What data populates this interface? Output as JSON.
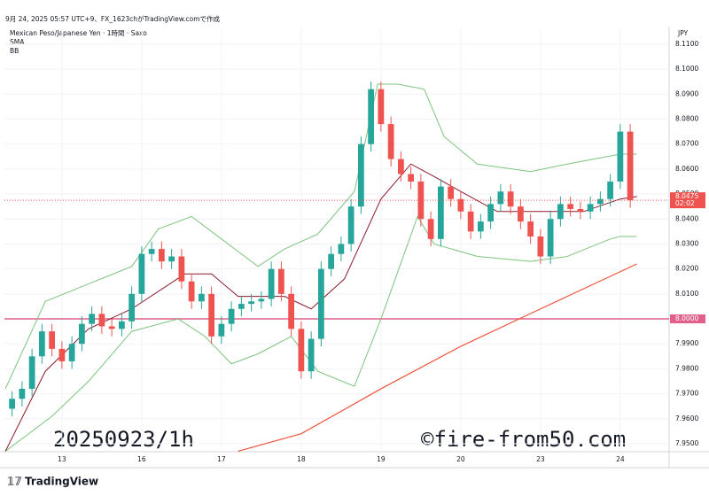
{
  "chart_data": {
    "type": "candlestick",
    "header": "9月 24, 2025 05:57 UTC+9、FX_1623chがTradingView.comで作成",
    "title": "Mexican Peso/Japanese Yen · 1時間 · Saxo",
    "currency": "JPY",
    "brand": "TradingView",
    "annotations": [
      "20250923/1h",
      "©fire-from50.com"
    ],
    "up_color": "#26a69a",
    "down_color": "#ef5350",
    "xlim": [
      -17.3,
      182.7
    ],
    "xticks": [
      {
        "value": 0,
        "label": "13"
      },
      {
        "value": 24,
        "label": "16"
      },
      {
        "value": 48,
        "label": "17"
      },
      {
        "value": 72,
        "label": "18"
      },
      {
        "value": 96,
        "label": "19"
      },
      {
        "value": 120,
        "label": "20"
      },
      {
        "value": 144,
        "label": "23"
      },
      {
        "value": 168,
        "label": "24"
      }
    ],
    "ylim": [
      7.9468,
      8.116
    ],
    "yticks": [
      {
        "value": 7.95,
        "label": "7.9500"
      },
      {
        "value": 7.96,
        "label": "7.9600"
      },
      {
        "value": 7.97,
        "label": "7.9700"
      },
      {
        "value": 7.98,
        "label": "7.9800"
      },
      {
        "value": 7.99,
        "label": "7.9900"
      },
      {
        "value": 8.0,
        "label": "8.0000"
      },
      {
        "value": 8.01,
        "label": "8.0100"
      },
      {
        "value": 8.02,
        "label": "8.0200"
      },
      {
        "value": 8.03,
        "label": "8.0300"
      },
      {
        "value": 8.04,
        "label": "8.0400"
      },
      {
        "value": 8.05,
        "label": "8.0500"
      },
      {
        "value": 8.06,
        "label": "8.0600"
      },
      {
        "value": 8.07,
        "label": "8.0700"
      },
      {
        "value": 8.08,
        "label": "8.0800"
      },
      {
        "value": 8.09,
        "label": "8.0900"
      },
      {
        "value": 8.1,
        "label": "8.1000"
      },
      {
        "value": 8.11,
        "label": "8.1100"
      }
    ],
    "grid": true,
    "x": [
      -15,
      -12,
      -9,
      -6,
      -3,
      0,
      3,
      6,
      9,
      12,
      15,
      18,
      21,
      24,
      27,
      30,
      33,
      36,
      39,
      42,
      45,
      48,
      51,
      54,
      57,
      60,
      63,
      66,
      69,
      72,
      75,
      78,
      81,
      84,
      87,
      90,
      93,
      96,
      99,
      102,
      105,
      108,
      111,
      114,
      117,
      120,
      123,
      126,
      129,
      132,
      135,
      138,
      141,
      144,
      147,
      150,
      153,
      156,
      159,
      162,
      165,
      168,
      171
    ],
    "open": [
      7.964,
      7.968,
      7.972,
      7.985,
      7.995,
      7.988,
      7.983,
      7.99,
      7.998,
      8.002,
      7.997,
      7.996,
      7.999,
      8.01,
      8.026,
      8.028,
      8.023,
      8.025,
      8.015,
      8.007,
      8.01,
      7.993,
      7.998,
      8.004,
      8.006,
      8.007,
      8.008,
      8.02,
      8.01,
      7.996,
      7.979,
      7.992,
      8.02,
      8.026,
      8.03,
      8.045,
      8.07,
      8.092,
      8.078,
      8.064,
      8.058,
      8.055,
      8.04,
      8.032,
      8.053,
      8.048,
      8.043,
      8.035,
      8.039,
      8.046,
      8.051,
      8.045,
      8.039,
      8.033,
      8.025,
      8.04,
      8.046,
      8.044,
      8.043,
      8.046,
      8.048,
      8.055,
      8.075
    ],
    "high": [
      7.971,
      7.975,
      7.988,
      7.998,
      7.998,
      7.991,
      7.993,
      8.001,
      8.005,
      8.005,
      8.0,
      8.002,
      8.013,
      8.029,
      8.031,
      8.031,
      8.028,
      8.028,
      8.018,
      8.013,
      8.013,
      8.001,
      8.007,
      8.009,
      8.01,
      8.011,
      8.023,
      8.023,
      8.013,
      7.999,
      7.995,
      8.023,
      8.029,
      8.033,
      8.048,
      8.073,
      8.095,
      8.095,
      8.081,
      8.067,
      8.061,
      8.058,
      8.043,
      8.056,
      8.056,
      8.051,
      8.046,
      8.042,
      8.049,
      8.054,
      8.054,
      8.048,
      8.042,
      8.036,
      8.043,
      8.049,
      8.049,
      8.047,
      8.049,
      8.051,
      8.058,
      8.078,
      8.078
    ],
    "low": [
      7.961,
      7.965,
      7.969,
      7.982,
      7.985,
      7.98,
      7.98,
      7.987,
      7.995,
      7.994,
      7.993,
      7.993,
      7.996,
      8.007,
      8.023,
      8.02,
      8.02,
      8.012,
      8.004,
      8.004,
      7.99,
      7.99,
      7.995,
      8.001,
      8.003,
      8.004,
      8.005,
      8.007,
      7.993,
      7.976,
      7.976,
      7.989,
      8.017,
      8.023,
      8.027,
      8.042,
      8.067,
      8.075,
      8.061,
      8.055,
      8.052,
      8.037,
      8.029,
      8.029,
      8.045,
      8.04,
      8.032,
      8.032,
      8.036,
      8.043,
      8.042,
      8.036,
      8.03,
      8.022,
      8.022,
      8.037,
      8.041,
      8.04,
      8.04,
      8.043,
      8.045,
      8.052,
      8.0445
    ],
    "close": [
      7.968,
      7.972,
      7.985,
      7.995,
      7.988,
      7.983,
      7.99,
      7.998,
      8.002,
      7.997,
      7.996,
      7.999,
      8.01,
      8.026,
      8.028,
      8.023,
      8.025,
      8.015,
      8.007,
      8.01,
      7.993,
      7.998,
      8.004,
      8.006,
      8.007,
      8.008,
      8.02,
      8.01,
      7.996,
      7.979,
      7.992,
      8.02,
      8.026,
      8.03,
      8.045,
      8.07,
      8.092,
      8.078,
      8.064,
      8.058,
      8.055,
      8.04,
      8.032,
      8.053,
      8.048,
      8.043,
      8.035,
      8.039,
      8.046,
      8.051,
      8.045,
      8.039,
      8.033,
      8.025,
      8.04,
      8.046,
      8.044,
      8.043,
      8.046,
      8.048,
      8.055,
      8.075,
      8.0475
    ],
    "last_price": 8.0475,
    "countdown": "02:02",
    "hline": {
      "value": 8.0,
      "label": "8.0000",
      "color": "#e0608a"
    },
    "sma": {
      "name": "SMA",
      "color": "#f0533c",
      "x": [
        53,
        72,
        96,
        120,
        144,
        173
      ],
      "values": [
        7.947,
        7.954,
        7.972,
        7.989,
        8.004,
        8.022
      ]
    },
    "bb": {
      "name": "BB",
      "band_color": "#7cc47c",
      "middle_color": "#8b1a2b",
      "middle": {
        "x": [
          -17,
          -5,
          8,
          21,
          37,
          45,
          53,
          67,
          75,
          85,
          96,
          105,
          112,
          120,
          131,
          139,
          147,
          157,
          168,
          173
        ],
        "values": [
          7.947,
          7.979,
          7.996,
          8.004,
          8.018,
          8.018,
          8.009,
          8.009,
          8.004,
          8.016,
          8.048,
          8.062,
          8.057,
          8.051,
          8.043,
          8.043,
          8.043,
          8.043,
          8.048,
          8.049
        ]
      },
      "upper": {
        "x": [
          -17,
          -5,
          8,
          21,
          29,
          39,
          48,
          59,
          67,
          77,
          88,
          95,
          101,
          109,
          115,
          125,
          141,
          152,
          168,
          173
        ],
        "values": [
          7.972,
          8.007,
          8.014,
          8.021,
          8.036,
          8.041,
          8.032,
          8.021,
          8.028,
          8.034,
          8.051,
          8.094,
          8.094,
          8.092,
          8.073,
          8.062,
          8.059,
          8.062,
          8.066,
          8.066
        ]
      },
      "lower": {
        "x": [
          -17,
          -3,
          8,
          21,
          35,
          43,
          51,
          59,
          69,
          77,
          88,
          96,
          107,
          112,
          125,
          141,
          152,
          165,
          168,
          173
        ],
        "values": [
          7.947,
          7.961,
          7.975,
          7.995,
          8.0,
          7.993,
          7.982,
          7.986,
          7.993,
          7.979,
          7.973,
          8.0,
          8.041,
          8.03,
          8.025,
          8.023,
          8.025,
          8.032,
          8.033,
          8.033
        ]
      }
    }
  }
}
